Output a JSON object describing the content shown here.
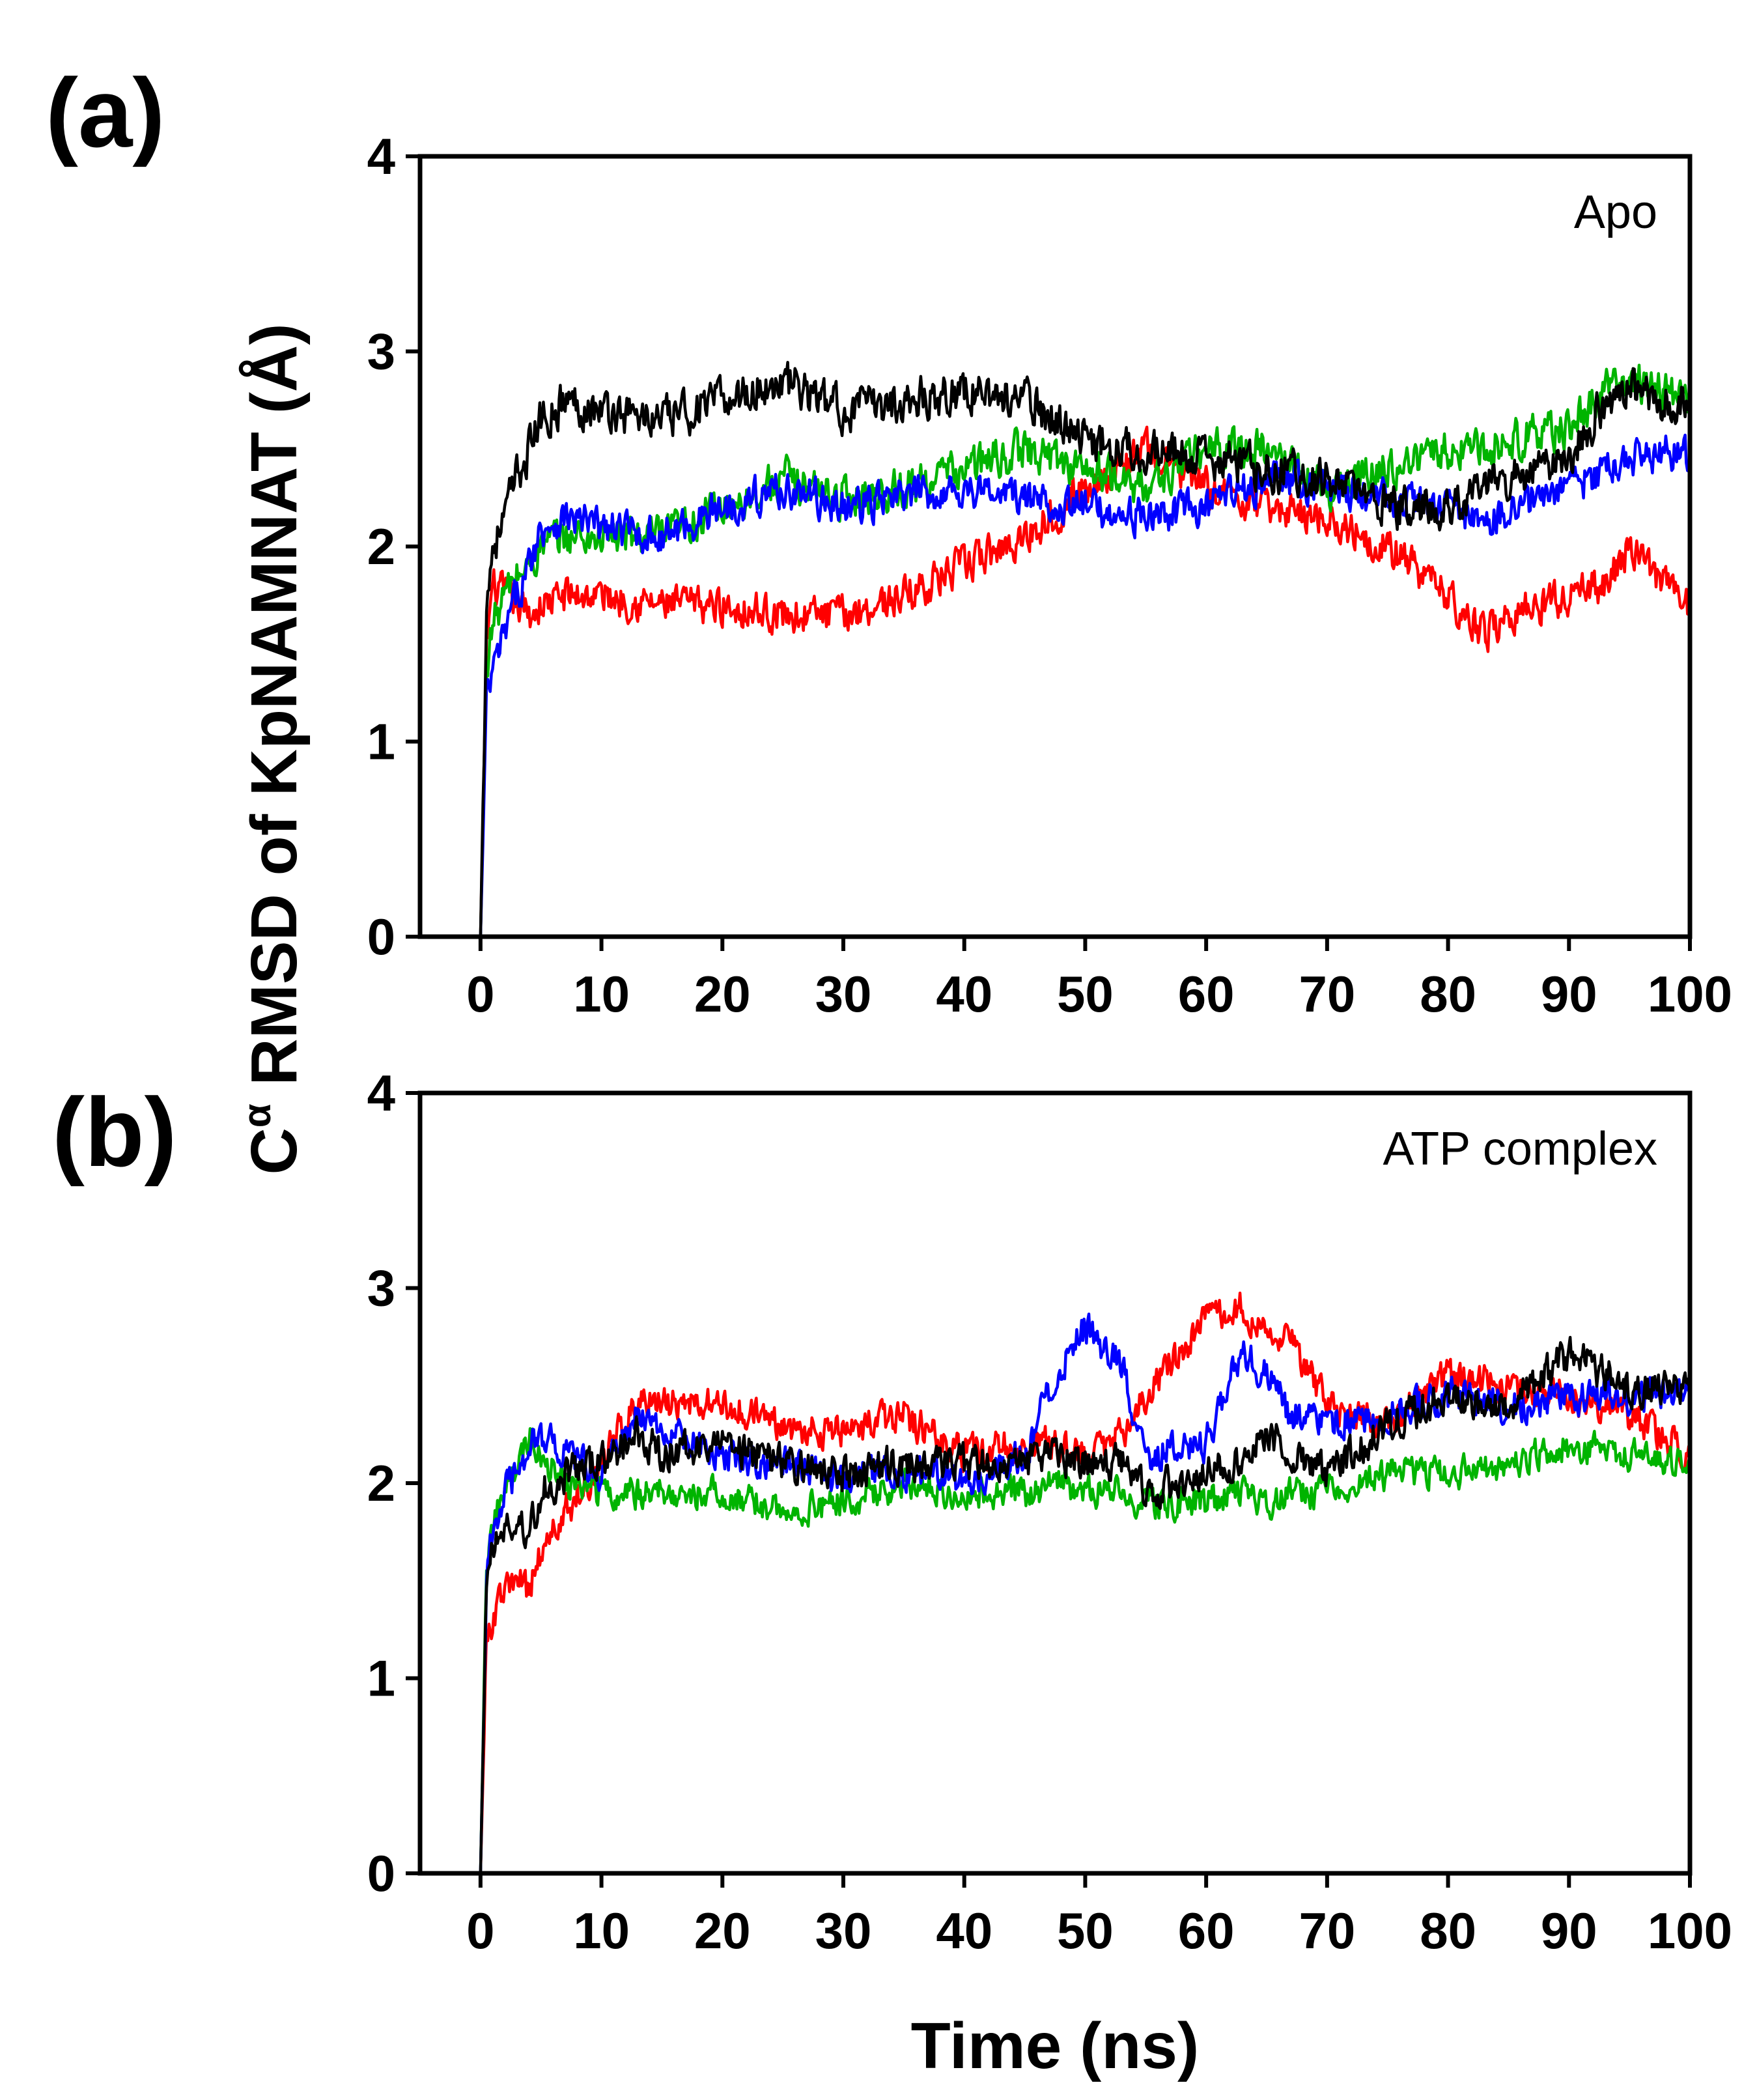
{
  "figure": {
    "ylabel_base": "C",
    "ylabel_sup": "α",
    "ylabel_rest": " RMSD of KpNAMNAT (Å)",
    "xlabel": "Time (ns)"
  },
  "chart_data": [
    {
      "type": "line",
      "panel_label": "(a)",
      "annotation": "Apo",
      "xlabel": "Time (ns)",
      "ylabel": "Cα RMSD of KpNAMNAT (Å)",
      "xlim": [
        -5,
        100
      ],
      "ylim": [
        0,
        4
      ],
      "xticks": [
        0,
        10,
        20,
        30,
        40,
        50,
        60,
        70,
        80,
        90,
        100
      ],
      "yticks": [
        0,
        1,
        2,
        3,
        4
      ],
      "x": [
        0,
        0.5,
        1,
        2,
        3,
        4,
        5,
        7,
        10,
        15,
        20,
        25,
        30,
        35,
        40,
        45,
        50,
        55,
        60,
        65,
        70,
        75,
        80,
        83,
        85,
        90,
        93,
        95,
        98,
        100
      ],
      "series": [
        {
          "name": "red",
          "color": "#ff0000",
          "noise": 0.14,
          "values": [
            0,
            1.5,
            1.8,
            1.75,
            1.7,
            1.65,
            1.7,
            1.75,
            1.75,
            1.7,
            1.7,
            1.65,
            1.65,
            1.75,
            1.9,
            2.05,
            2.3,
            2.5,
            2.3,
            2.2,
            2.15,
            2.0,
            1.75,
            1.55,
            1.65,
            1.75,
            1.8,
            2.0,
            1.8,
            1.7
          ]
        },
        {
          "name": "green",
          "color": "#00b400",
          "noise": 0.15,
          "values": [
            0,
            1.4,
            1.6,
            1.75,
            1.85,
            1.9,
            2.0,
            2.05,
            2.05,
            2.05,
            2.2,
            2.35,
            2.25,
            2.3,
            2.4,
            2.5,
            2.4,
            2.3,
            2.5,
            2.5,
            2.3,
            2.4,
            2.5,
            2.5,
            2.55,
            2.6,
            2.8,
            2.85,
            2.8,
            2.75
          ]
        },
        {
          "name": "blue",
          "color": "#0000ff",
          "noise": 0.14,
          "values": [
            0,
            1.2,
            1.35,
            1.55,
            1.75,
            1.9,
            2.1,
            2.15,
            2.1,
            2.05,
            2.2,
            2.3,
            2.2,
            2.25,
            2.3,
            2.25,
            2.2,
            2.15,
            2.2,
            2.35,
            2.3,
            2.25,
            2.2,
            2.1,
            2.2,
            2.3,
            2.4,
            2.45,
            2.5,
            2.45
          ]
        },
        {
          "name": "black",
          "color": "#000000",
          "noise": 0.16,
          "values": [
            0,
            1.7,
            2.0,
            2.15,
            2.35,
            2.5,
            2.65,
            2.75,
            2.7,
            2.65,
            2.75,
            2.85,
            2.7,
            2.75,
            2.8,
            2.75,
            2.55,
            2.5,
            2.45,
            2.4,
            2.35,
            2.2,
            2.2,
            2.3,
            2.35,
            2.45,
            2.75,
            2.8,
            2.75,
            2.75
          ]
        }
      ]
    },
    {
      "type": "line",
      "panel_label": "(b)",
      "annotation": "ATP complex",
      "xlabel": "Time (ns)",
      "ylabel": "Cα RMSD of KpNAMNAT (Å)",
      "xlim": [
        -5,
        100
      ],
      "ylim": [
        0,
        4
      ],
      "xticks": [
        0,
        10,
        20,
        30,
        40,
        50,
        60,
        70,
        80,
        90,
        100
      ],
      "yticks": [
        0,
        1,
        2,
        3,
        4
      ],
      "x": [
        0,
        0.5,
        1,
        2,
        3,
        4,
        5,
        7,
        10,
        13,
        15,
        20,
        25,
        30,
        35,
        40,
        45,
        48,
        50,
        53,
        55,
        60,
        63,
        65,
        67,
        70,
        75,
        80,
        85,
        90,
        95,
        100
      ],
      "series": [
        {
          "name": "red",
          "color": "#ff0000",
          "noise": 0.13,
          "values": [
            0,
            1.2,
            1.3,
            1.45,
            1.5,
            1.45,
            1.65,
            1.85,
            2.1,
            2.45,
            2.4,
            2.4,
            2.3,
            2.25,
            2.35,
            2.15,
            2.2,
            2.2,
            2.15,
            2.25,
            2.45,
            2.85,
            2.9,
            2.8,
            2.75,
            2.4,
            2.3,
            2.55,
            2.5,
            2.45,
            2.35,
            2.15
          ]
        },
        {
          "name": "green",
          "color": "#00b400",
          "noise": 0.12,
          "values": [
            0,
            1.6,
            1.8,
            1.95,
            2.05,
            2.25,
            2.15,
            2.0,
            1.95,
            1.95,
            1.95,
            1.95,
            1.85,
            1.9,
            2.0,
            1.95,
            1.95,
            2.0,
            1.95,
            1.95,
            1.9,
            1.9,
            1.95,
            1.9,
            1.95,
            1.95,
            2.05,
            2.05,
            2.1,
            2.2,
            2.15,
            2.1
          ]
        },
        {
          "name": "blue",
          "color": "#0000ff",
          "noise": 0.13,
          "values": [
            0,
            1.5,
            1.75,
            1.95,
            2.05,
            2.2,
            2.25,
            2.15,
            2.05,
            2.35,
            2.25,
            2.15,
            2.1,
            2.05,
            2.05,
            2.0,
            2.15,
            2.6,
            2.8,
            2.6,
            2.15,
            2.2,
            2.7,
            2.55,
            2.35,
            2.3,
            2.35,
            2.45,
            2.4,
            2.45,
            2.45,
            2.45
          ]
        },
        {
          "name": "black",
          "color": "#000000",
          "noise": 0.14,
          "values": [
            0,
            1.5,
            1.7,
            1.75,
            1.8,
            1.75,
            1.95,
            2.05,
            2.1,
            2.25,
            2.15,
            2.2,
            2.1,
            2.05,
            2.1,
            2.1,
            2.1,
            2.15,
            2.1,
            2.1,
            1.95,
            2.05,
            2.1,
            2.25,
            2.15,
            2.05,
            2.3,
            2.45,
            2.4,
            2.65,
            2.5,
            2.5
          ]
        }
      ]
    }
  ]
}
